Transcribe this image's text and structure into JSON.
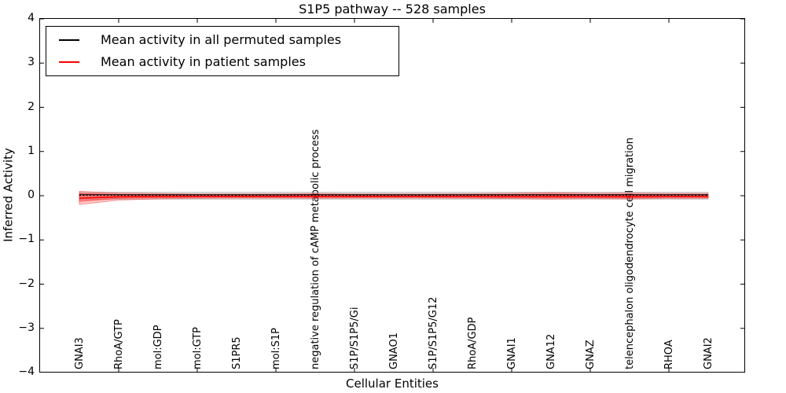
{
  "figure": {
    "background": "#ffffff"
  },
  "chart_data": {
    "type": "line",
    "title": "S1P5 pathway -- 528 samples",
    "xlabel": "Cellular Entities",
    "ylabel": "Inferred Activity",
    "ylim": [
      -4,
      4
    ],
    "grid": false,
    "yticks": {
      "values": [
        4,
        3,
        2,
        1,
        0,
        -1,
        -2,
        -3,
        -4
      ],
      "labels": [
        "4",
        "3",
        "2",
        "1",
        "0",
        "−1",
        "−2",
        "−3",
        "−4"
      ]
    },
    "visible_top_bottom_tick_indices": [
      1,
      3,
      5,
      7,
      9,
      11,
      13,
      15
    ],
    "categories": [
      "GNAI3",
      "RhoA/GTP",
      "mol:GDP",
      "mol:GTP",
      "S1PR5",
      "mol:S1P",
      "negative regulation of cAMP metabolic process",
      "S1P/S1P5/Gi",
      "GNAO1",
      "S1P/S1P5/G12",
      "RhoA/GDP",
      "GNAI1",
      "GNA12",
      "GNAZ",
      "telencephalon oligodendrocyte cell migration",
      "RHOA",
      "GNAI2"
    ],
    "series": [
      {
        "name": "Mean activity in all permuted samples",
        "color": "#000000",
        "values": [
          0,
          0,
          0,
          0,
          0,
          0,
          0,
          0,
          0,
          0,
          0,
          0,
          0,
          0,
          0,
          0,
          0
        ]
      },
      {
        "name": "Mean activity in patient samples",
        "color": "#ff0000",
        "values": [
          -0.05,
          -0.02,
          -0.01,
          -0.01,
          -0.01,
          -0.01,
          -0.01,
          -0.01,
          -0.01,
          -0.01,
          -0.01,
          -0.01,
          -0.01,
          -0.01,
          -0.01,
          -0.01,
          -0.01
        ]
      }
    ],
    "bands": [
      {
        "name": "permuted-samples-spread",
        "color": "#888888",
        "opacity": 0.28,
        "upper": [
          0.08,
          0.08,
          0.08,
          0.08,
          0.08,
          0.08,
          0.08,
          0.08,
          0.08,
          0.08,
          0.08,
          0.08,
          0.08,
          0.08,
          0.08,
          0.08,
          0.08
        ],
        "lower": [
          -0.08,
          -0.08,
          -0.08,
          -0.08,
          -0.08,
          -0.08,
          -0.08,
          -0.08,
          -0.08,
          -0.08,
          -0.08,
          -0.08,
          -0.08,
          -0.08,
          -0.08,
          -0.08,
          -0.08
        ]
      },
      {
        "name": "patient-samples-spread-outer",
        "color": "#ff0000",
        "opacity": 0.22,
        "upper": [
          0.1,
          0.06,
          0.05,
          0.04,
          0.04,
          0.04,
          0.05,
          0.04,
          0.04,
          0.04,
          0.045,
          0.055,
          0.07,
          0.055,
          0.06,
          0.05,
          0.05
        ],
        "lower": [
          -0.2,
          -0.1,
          -0.07,
          -0.06,
          -0.055,
          -0.055,
          -0.06,
          -0.055,
          -0.055,
          -0.055,
          -0.06,
          -0.065,
          -0.075,
          -0.065,
          -0.07,
          -0.06,
          -0.06
        ]
      },
      {
        "name": "patient-samples-spread-inner",
        "color": "#ff0000",
        "opacity": 0.3,
        "upper": [
          0.05,
          0.03,
          0.025,
          0.02,
          0.02,
          0.02,
          0.025,
          0.02,
          0.02,
          0.02,
          0.022,
          0.028,
          0.035,
          0.028,
          0.03,
          0.025,
          0.025
        ],
        "lower": [
          -0.13,
          -0.06,
          -0.045,
          -0.038,
          -0.035,
          -0.035,
          -0.04,
          -0.035,
          -0.035,
          -0.035,
          -0.04,
          -0.045,
          -0.05,
          -0.045,
          -0.048,
          -0.04,
          -0.04
        ]
      }
    ],
    "legend": {
      "position": "upper left",
      "entries": [
        {
          "label": "Mean activity in all permuted samples",
          "color": "#000000"
        },
        {
          "label": "Mean activity in patient samples",
          "color": "#ff0000"
        }
      ]
    }
  }
}
